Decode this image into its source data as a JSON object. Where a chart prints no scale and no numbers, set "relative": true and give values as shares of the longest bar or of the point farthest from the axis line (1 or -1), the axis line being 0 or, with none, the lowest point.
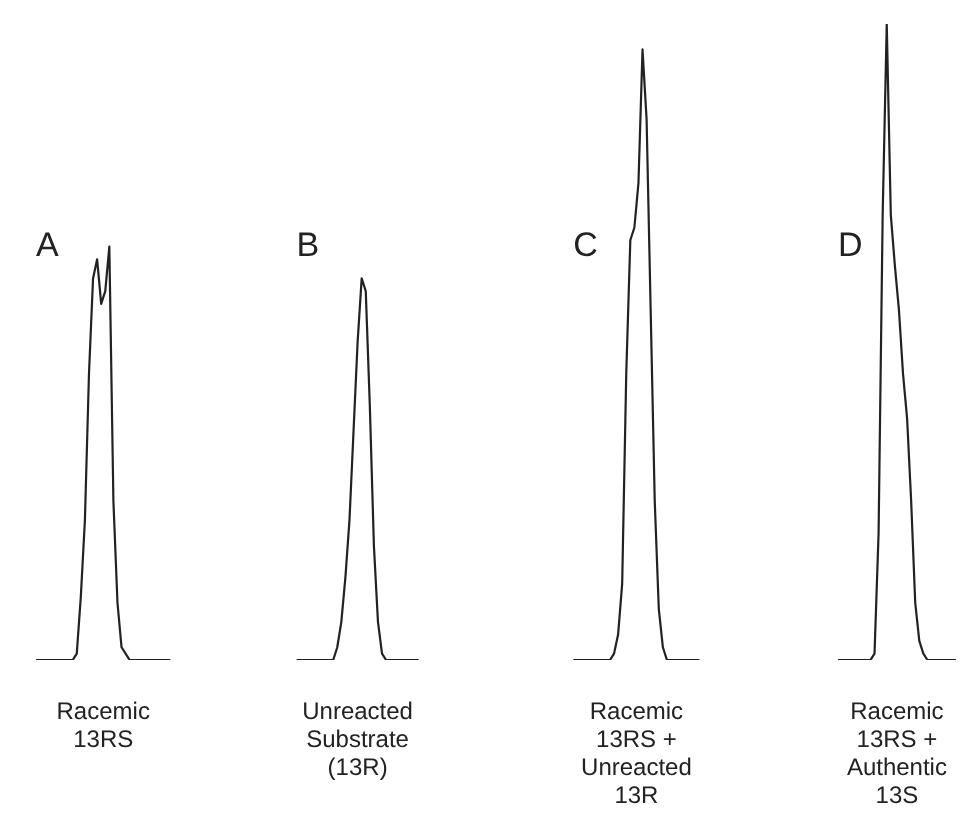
{
  "chart_data": {
    "type": "line",
    "relative": true,
    "marker": "none",
    "legend": false,
    "tick_labels": false,
    "categories": [
      null,
      null,
      null,
      null,
      null,
      null,
      null,
      null,
      null,
      null,
      null,
      null,
      null,
      null,
      null,
      null,
      null,
      null,
      null,
      null,
      null,
      null,
      null,
      null,
      null,
      null,
      null,
      null,
      null,
      null,
      null,
      null,
      null,
      null,
      null,
      null,
      null,
      null,
      null,
      null,
      null,
      null,
      null,
      null,
      null,
      null,
      null,
      null,
      null,
      null,
      null,
      null,
      null,
      null,
      null,
      null,
      null,
      null,
      null,
      null,
      null,
      null,
      null,
      null,
      null,
      null,
      null,
      null,
      null,
      null,
      null,
      null,
      null,
      null,
      null,
      null,
      null,
      null,
      null,
      null,
      null,
      null,
      null,
      null,
      null,
      null,
      null,
      null,
      null,
      null,
      null,
      null,
      null,
      null,
      null,
      null,
      null,
      null,
      null,
      null,
      null,
      null,
      null,
      null,
      null,
      null,
      null,
      null,
      null,
      null,
      null,
      null,
      null,
      null,
      null,
      null,
      null,
      null,
      null,
      null,
      null,
      null,
      null,
      null,
      null,
      null,
      null,
      null,
      null,
      null,
      null,
      null,
      null,
      null,
      null,
      null,
      null,
      null,
      null,
      null,
      null,
      null,
      null,
      null,
      null,
      null,
      null,
      null,
      null,
      null,
      null,
      null,
      null,
      null,
      null,
      null,
      null,
      null,
      null,
      null,
      null,
      null,
      null,
      null,
      null,
      null,
      null,
      null,
      null,
      null,
      null,
      null,
      null,
      null,
      null,
      null,
      null,
      null,
      null,
      null,
      null,
      null,
      null,
      null,
      null,
      null,
      null,
      null,
      null,
      null,
      null,
      null,
      null,
      null,
      null,
      null,
      null,
      null,
      null,
      null,
      null,
      null,
      null,
      null,
      null,
      null,
      null,
      null,
      null,
      null,
      null,
      null,
      null,
      null,
      null,
      null,
      null,
      null,
      null,
      null,
      null,
      null,
      null,
      null,
      null,
      null,
      null,
      null,
      null
    ],
    "series": [
      {
        "name": "A",
        "color": "#222222",
        "values": [
          null,
          0,
          0,
          0,
          0,
          0,
          0,
          0,
          0,
          0,
          0,
          0.01,
          0.1,
          0.22,
          0.45,
          0.6,
          0.63,
          0.56,
          0.58,
          0.65,
          0.25,
          0.09,
          0.02,
          0.01,
          0,
          0,
          0,
          0,
          0,
          0,
          0,
          0,
          0,
          0,
          0,
          null,
          null,
          null,
          null,
          null,
          null,
          null,
          null,
          null,
          null,
          null,
          null,
          null,
          null,
          null,
          null,
          null,
          null,
          null,
          null,
          null,
          null,
          null,
          null,
          null,
          null,
          null,
          null,
          null,
          null,
          null,
          null,
          null,
          null,
          null,
          null,
          null,
          null,
          null,
          null,
          null,
          null,
          null,
          null,
          null,
          null,
          null,
          null,
          null,
          null,
          null,
          null,
          null,
          null,
          null,
          null,
          null,
          null,
          null,
          null,
          null,
          null,
          null,
          null,
          null,
          null,
          null,
          null,
          null,
          null,
          null,
          null,
          null,
          null,
          null,
          null,
          null,
          null,
          null,
          null,
          null,
          null,
          null,
          null,
          null,
          null,
          null,
          null,
          null,
          null,
          null,
          null,
          null,
          null,
          null,
          null,
          null,
          null,
          null,
          null,
          null,
          null,
          null,
          null,
          null,
          null,
          null,
          null,
          null,
          null,
          null,
          null,
          null,
          null,
          null,
          null,
          null,
          null,
          null,
          null,
          null,
          null,
          null,
          null,
          null,
          null,
          null,
          null,
          null,
          null,
          null,
          null,
          null,
          null,
          null,
          null,
          null,
          null,
          null,
          null,
          null,
          null,
          null,
          null,
          null,
          null,
          null,
          null,
          null,
          null,
          null,
          null,
          null,
          null,
          null,
          null,
          null,
          null,
          null,
          null,
          null,
          null,
          null,
          null,
          null,
          null,
          null,
          null,
          null,
          null,
          null,
          null,
          null,
          null,
          null,
          null,
          null,
          null,
          null,
          null,
          null,
          null,
          null,
          null,
          null,
          null,
          null,
          null,
          null,
          null,
          null,
          null,
          null,
          null
        ]
      },
      {
        "name": "B",
        "color": "#222222",
        "values": [
          null,
          null,
          null,
          null,
          null,
          null,
          null,
          null,
          null,
          null,
          null,
          null,
          null,
          null,
          null,
          null,
          null,
          null,
          null,
          null,
          null,
          null,
          null,
          null,
          null,
          null,
          null,
          null,
          null,
          null,
          null,
          null,
          null,
          null,
          null,
          null,
          null,
          null,
          null,
          null,
          null,
          null,
          null,
          null,
          null,
          null,
          null,
          null,
          null,
          null,
          null,
          null,
          null,
          null,
          null,
          null,
          null,
          null,
          null,
          null,
          null,
          null,
          null,
          null,
          null,
          0,
          0,
          0,
          0,
          0,
          0,
          0,
          0,
          0,
          0,
          0.02,
          0.06,
          0.13,
          0.22,
          0.36,
          0.5,
          0.6,
          0.58,
          0.4,
          0.18,
          0.06,
          0.01,
          0,
          0,
          0,
          0,
          0,
          0,
          0,
          0,
          0,
          null,
          null,
          null,
          null,
          null,
          null,
          null,
          null,
          null,
          null,
          null,
          null,
          null,
          null,
          null,
          null,
          null,
          null,
          null,
          null,
          null,
          null,
          null,
          null,
          null,
          null,
          null,
          null,
          null,
          null,
          null,
          null,
          null,
          null,
          null,
          null,
          null,
          null,
          null,
          null,
          null,
          null,
          null,
          null,
          null,
          null,
          null,
          null,
          null,
          null,
          null,
          null,
          null,
          null,
          null,
          null,
          null,
          null,
          null,
          null,
          null,
          null,
          null,
          null,
          null,
          null,
          null,
          null,
          null,
          null,
          null,
          null,
          null,
          null,
          null,
          null,
          null,
          null,
          null,
          null,
          null,
          null,
          null,
          null,
          null,
          null,
          null,
          null,
          null,
          null,
          null,
          null,
          null,
          null,
          null,
          null,
          null,
          null,
          null,
          null,
          null,
          null,
          null,
          null,
          null,
          null,
          null,
          null,
          null,
          null,
          null,
          null,
          null,
          null,
          null,
          null,
          null,
          null,
          null,
          null,
          null,
          null,
          null,
          null,
          null,
          null,
          null,
          null,
          null,
          null,
          null,
          null,
          null
        ]
      },
      {
        "name": "C",
        "color": "#222222",
        "values": [
          null,
          null,
          null,
          null,
          null,
          null,
          null,
          null,
          null,
          null,
          null,
          null,
          null,
          null,
          null,
          null,
          null,
          null,
          null,
          null,
          null,
          null,
          null,
          null,
          null,
          null,
          null,
          null,
          null,
          null,
          null,
          null,
          null,
          null,
          null,
          null,
          null,
          null,
          null,
          null,
          null,
          null,
          null,
          null,
          null,
          null,
          null,
          null,
          null,
          null,
          null,
          null,
          null,
          null,
          null,
          null,
          null,
          null,
          null,
          null,
          null,
          null,
          null,
          null,
          null,
          null,
          null,
          null,
          null,
          null,
          null,
          null,
          null,
          null,
          null,
          null,
          null,
          null,
          null,
          null,
          null,
          null,
          null,
          null,
          null,
          null,
          null,
          null,
          null,
          null,
          null,
          null,
          null,
          null,
          null,
          null,
          null,
          null,
          null,
          null,
          null,
          null,
          null,
          null,
          null,
          null,
          null,
          null,
          null,
          null,
          null,
          null,
          null,
          null,
          null,
          null,
          null,
          null,
          null,
          null,
          null,
          null,
          null,
          null,
          null,
          null,
          null,
          null,
          null,
          null,
          null,
          null,
          null,
          0,
          0,
          0,
          0,
          0,
          0,
          0,
          0,
          0,
          0,
          0.01,
          0.04,
          0.12,
          0.45,
          0.66,
          0.68,
          0.75,
          0.96,
          0.85,
          0.55,
          0.25,
          0.08,
          0.02,
          0,
          0,
          0,
          0,
          0,
          0,
          0,
          0,
          0,
          null,
          null,
          null,
          null,
          null,
          null,
          null,
          null,
          null,
          null,
          null,
          null,
          null,
          null,
          null,
          null,
          null,
          null,
          null,
          null,
          null,
          null,
          null,
          null,
          null,
          null,
          null,
          null,
          null,
          null,
          null,
          null,
          null,
          null,
          null,
          null,
          null,
          null,
          null,
          null,
          null,
          null,
          null,
          null,
          null,
          null,
          null,
          null,
          null,
          null,
          null,
          null,
          null,
          null,
          null,
          null,
          null,
          null,
          null,
          null,
          null,
          null,
          null,
          null
        ]
      },
      {
        "name": "D",
        "color": "#222222",
        "values": [
          null,
          null,
          null,
          null,
          null,
          null,
          null,
          null,
          null,
          null,
          null,
          null,
          null,
          null,
          null,
          null,
          null,
          null,
          null,
          null,
          null,
          null,
          null,
          null,
          null,
          null,
          null,
          null,
          null,
          null,
          null,
          null,
          null,
          null,
          null,
          null,
          null,
          null,
          null,
          null,
          null,
          null,
          null,
          null,
          null,
          null,
          null,
          null,
          null,
          null,
          null,
          null,
          null,
          null,
          null,
          null,
          null,
          null,
          null,
          null,
          null,
          null,
          null,
          null,
          null,
          null,
          null,
          null,
          null,
          null,
          null,
          null,
          null,
          null,
          null,
          null,
          null,
          null,
          null,
          null,
          null,
          null,
          null,
          null,
          null,
          null,
          null,
          null,
          null,
          null,
          null,
          null,
          null,
          null,
          null,
          null,
          null,
          null,
          null,
          null,
          null,
          null,
          null,
          null,
          null,
          null,
          null,
          null,
          null,
          null,
          null,
          null,
          null,
          null,
          null,
          null,
          null,
          null,
          null,
          null,
          null,
          null,
          null,
          null,
          null,
          null,
          null,
          null,
          null,
          null,
          null,
          null,
          null,
          null,
          null,
          null,
          null,
          null,
          null,
          null,
          null,
          null,
          null,
          null,
          null,
          null,
          null,
          null,
          null,
          null,
          null,
          null,
          null,
          null,
          null,
          null,
          null,
          null,
          null,
          null,
          null,
          null,
          null,
          null,
          null,
          null,
          null,
          null,
          null,
          null,
          null,
          null,
          null,
          null,
          null,
          null,
          null,
          null,
          null,
          null,
          null,
          null,
          null,
          null,
          null,
          null,
          null,
          null,
          null,
          null,
          null,
          null,
          null,
          null,
          null,
          null,
          null,
          null,
          0,
          0,
          0,
          0,
          0,
          0,
          0,
          0,
          0,
          0.01,
          0.2,
          0.7,
          1,
          0.7,
          0.62,
          0.55,
          0.45,
          0.38,
          0.25,
          0.09,
          0.03,
          0.01,
          0,
          0,
          0,
          0,
          0,
          0,
          0,
          0,
          null
        ]
      }
    ],
    "annotations": [
      "Racemic\n13RS",
      "Unreacted\nSubstrate\n(13R)",
      "Racemic\n13RS +\nUnreacted\n13R",
      "Racemic\n13RS +\nAuthentic\n13S"
    ]
  }
}
